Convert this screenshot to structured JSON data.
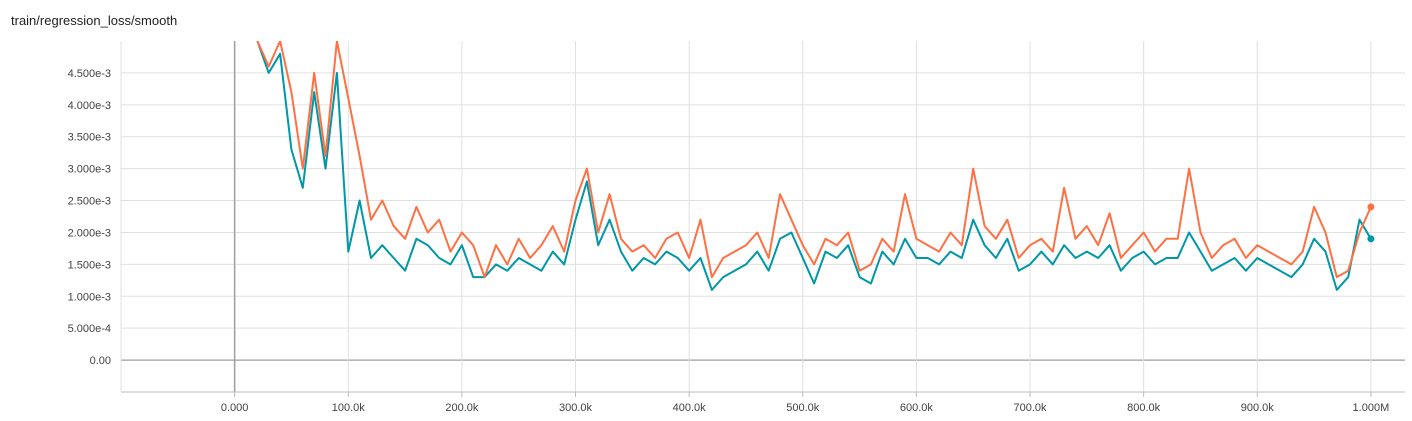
{
  "chart_data": {
    "type": "line",
    "title": "train/regression_loss/smooth",
    "xlabel": "",
    "ylabel": "",
    "xlim": [
      -100000,
      1030000
    ],
    "ylim": [
      -0.0005,
      0.005
    ],
    "xticks": [
      {
        "value": 0,
        "label": "0.000"
      },
      {
        "value": 100000,
        "label": "100.0k"
      },
      {
        "value": 200000,
        "label": "200.0k"
      },
      {
        "value": 300000,
        "label": "300.0k"
      },
      {
        "value": 400000,
        "label": "400.0k"
      },
      {
        "value": 500000,
        "label": "500.0k"
      },
      {
        "value": 600000,
        "label": "600.0k"
      },
      {
        "value": 700000,
        "label": "700.0k"
      },
      {
        "value": 800000,
        "label": "800.0k"
      },
      {
        "value": 900000,
        "label": "900.0k"
      },
      {
        "value": 1000000,
        "label": "1.000M"
      }
    ],
    "yticks": [
      {
        "value": 0.0,
        "label": "0.00"
      },
      {
        "value": 0.0005,
        "label": "5.000e-4"
      },
      {
        "value": 0.001,
        "label": "1.000e-3"
      },
      {
        "value": 0.0015,
        "label": "1.500e-3"
      },
      {
        "value": 0.002,
        "label": "2.000e-3"
      },
      {
        "value": 0.0025,
        "label": "2.500e-3"
      },
      {
        "value": 0.003,
        "label": "3.000e-3"
      },
      {
        "value": 0.0035,
        "label": "3.500e-3"
      },
      {
        "value": 0.004,
        "label": "4.000e-3"
      },
      {
        "value": 0.0045,
        "label": "4.500e-3"
      }
    ],
    "grid": true,
    "legend": "none",
    "series": [
      {
        "color": "#0097a7",
        "raw_color": "#80cbc4",
        "x": [
          20000,
          30000,
          40000,
          50000,
          60000,
          70000,
          80000,
          90000,
          100000,
          110000,
          120000,
          130000,
          140000,
          150000,
          160000,
          170000,
          180000,
          190000,
          200000,
          210000,
          220000,
          230000,
          240000,
          250000,
          260000,
          270000,
          280000,
          290000,
          300000,
          310000,
          320000,
          330000,
          340000,
          350000,
          360000,
          370000,
          380000,
          390000,
          400000,
          410000,
          420000,
          430000,
          440000,
          450000,
          460000,
          470000,
          480000,
          490000,
          500000,
          510000,
          520000,
          530000,
          540000,
          550000,
          560000,
          570000,
          580000,
          590000,
          600000,
          610000,
          620000,
          630000,
          640000,
          650000,
          660000,
          670000,
          680000,
          690000,
          700000,
          710000,
          720000,
          730000,
          740000,
          750000,
          760000,
          770000,
          780000,
          790000,
          800000,
          810000,
          820000,
          830000,
          840000,
          850000,
          860000,
          870000,
          880000,
          890000,
          900000,
          910000,
          920000,
          930000,
          940000,
          950000,
          960000,
          970000,
          980000,
          990000,
          1000000
        ],
        "y": [
          0.005,
          0.0045,
          0.0048,
          0.0033,
          0.0027,
          0.0042,
          0.003,
          0.0045,
          0.0017,
          0.0025,
          0.0016,
          0.0018,
          0.0016,
          0.0014,
          0.0019,
          0.0018,
          0.0016,
          0.0015,
          0.0018,
          0.0013,
          0.0013,
          0.0015,
          0.0014,
          0.0016,
          0.0015,
          0.0014,
          0.0017,
          0.0015,
          0.0022,
          0.0028,
          0.0018,
          0.0022,
          0.0017,
          0.0014,
          0.0016,
          0.0015,
          0.0017,
          0.0016,
          0.0014,
          0.0016,
          0.0011,
          0.0013,
          0.0014,
          0.0015,
          0.0017,
          0.0014,
          0.0019,
          0.002,
          0.0016,
          0.0012,
          0.0017,
          0.0016,
          0.0018,
          0.0013,
          0.0012,
          0.0017,
          0.0015,
          0.0019,
          0.0016,
          0.0016,
          0.0015,
          0.0017,
          0.0016,
          0.0022,
          0.0018,
          0.0016,
          0.0019,
          0.0014,
          0.0015,
          0.0017,
          0.0015,
          0.0018,
          0.0016,
          0.0017,
          0.0016,
          0.0018,
          0.0014,
          0.0016,
          0.0017,
          0.0015,
          0.0016,
          0.0016,
          0.002,
          0.0017,
          0.0014,
          0.0015,
          0.0016,
          0.0014,
          0.0016,
          0.0015,
          0.0014,
          0.0013,
          0.0015,
          0.0019,
          0.0017,
          0.0011,
          0.0013,
          0.0022,
          0.0019
        ]
      },
      {
        "color": "#ff7043",
        "raw_color": "#ffccbc",
        "x": [
          20000,
          30000,
          40000,
          50000,
          60000,
          70000,
          80000,
          90000,
          100000,
          110000,
          120000,
          130000,
          140000,
          150000,
          160000,
          170000,
          180000,
          190000,
          200000,
          210000,
          220000,
          230000,
          240000,
          250000,
          260000,
          270000,
          280000,
          290000,
          300000,
          310000,
          320000,
          330000,
          340000,
          350000,
          360000,
          370000,
          380000,
          390000,
          400000,
          410000,
          420000,
          430000,
          440000,
          450000,
          460000,
          470000,
          480000,
          490000,
          500000,
          510000,
          520000,
          530000,
          540000,
          550000,
          560000,
          570000,
          580000,
          590000,
          600000,
          610000,
          620000,
          630000,
          640000,
          650000,
          660000,
          670000,
          680000,
          690000,
          700000,
          710000,
          720000,
          730000,
          740000,
          750000,
          760000,
          770000,
          780000,
          790000,
          800000,
          810000,
          820000,
          830000,
          840000,
          850000,
          860000,
          870000,
          880000,
          890000,
          900000,
          910000,
          920000,
          930000,
          940000,
          950000,
          960000,
          970000,
          980000,
          990000,
          1000000
        ],
        "y": [
          0.005,
          0.0046,
          0.005,
          0.0042,
          0.003,
          0.0045,
          0.0032,
          0.005,
          0.0041,
          0.0032,
          0.0022,
          0.0025,
          0.0021,
          0.0019,
          0.0024,
          0.002,
          0.0022,
          0.0017,
          0.002,
          0.0018,
          0.0013,
          0.0018,
          0.0015,
          0.0019,
          0.0016,
          0.0018,
          0.0021,
          0.0017,
          0.0025,
          0.003,
          0.002,
          0.0026,
          0.0019,
          0.0017,
          0.0018,
          0.0016,
          0.0019,
          0.002,
          0.0016,
          0.0022,
          0.0013,
          0.0016,
          0.0017,
          0.0018,
          0.002,
          0.0016,
          0.0026,
          0.0022,
          0.0018,
          0.0015,
          0.0019,
          0.0018,
          0.002,
          0.0014,
          0.0015,
          0.0019,
          0.0017,
          0.0026,
          0.0019,
          0.0018,
          0.0017,
          0.002,
          0.0018,
          0.003,
          0.0021,
          0.0019,
          0.0022,
          0.0016,
          0.0018,
          0.0019,
          0.0017,
          0.0027,
          0.0019,
          0.0021,
          0.0018,
          0.0023,
          0.0016,
          0.0018,
          0.002,
          0.0017,
          0.0019,
          0.0019,
          0.003,
          0.002,
          0.0016,
          0.0018,
          0.0019,
          0.0016,
          0.0018,
          0.0017,
          0.0016,
          0.0015,
          0.0017,
          0.0024,
          0.002,
          0.0013,
          0.0014,
          0.002,
          0.0024
        ]
      }
    ]
  }
}
